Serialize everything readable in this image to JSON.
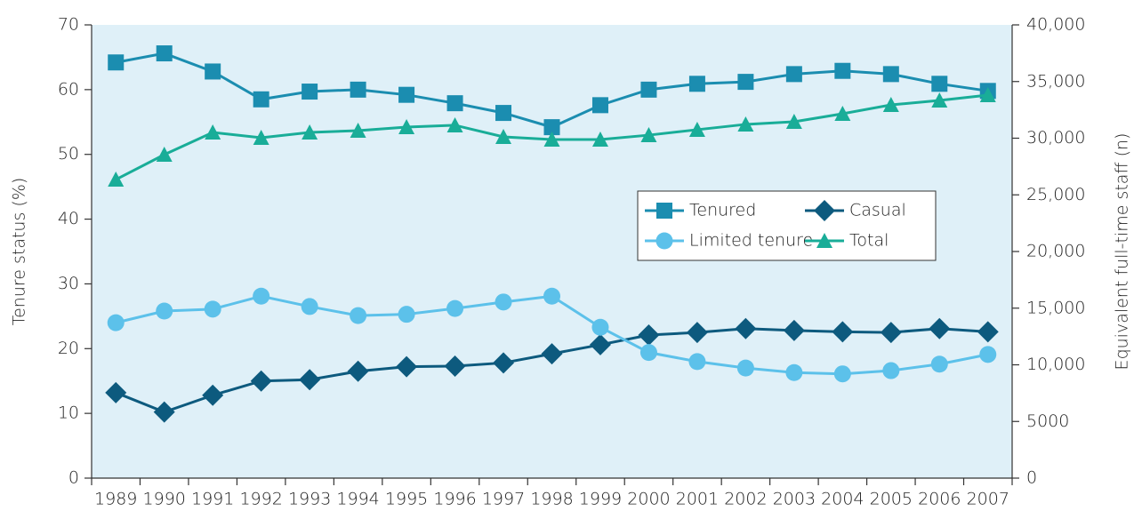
{
  "chart_data": {
    "type": "line",
    "categories": [
      "1989",
      "1990",
      "1991",
      "1992",
      "1993",
      "1994",
      "1995",
      "1996",
      "1997",
      "1998",
      "1999",
      "2000",
      "2001",
      "2002",
      "2003",
      "2004",
      "2005",
      "2006",
      "2007"
    ],
    "ylabel": "Tenure status (%)",
    "y2label": "Equivalent full-time staff (n)",
    "ylim": [
      0,
      70
    ],
    "yticks": [
      0,
      10,
      20,
      30,
      40,
      50,
      60,
      70
    ],
    "y2lim": [
      0,
      40000
    ],
    "y2ticks": [
      0,
      5000,
      {
        "value": 10000,
        "label": "10,000"
      },
      {
        "value": 15000,
        "label": "15,000"
      },
      {
        "value": 20000,
        "label": "20,000"
      },
      {
        "value": 25000,
        "label": "25,000"
      },
      {
        "value": 30000,
        "label": "30,000"
      },
      {
        "value": 35000,
        "label": "35,000"
      },
      {
        "value": 40000,
        "label": "40,000"
      }
    ],
    "legend": "center",
    "background": "#dff0f8",
    "series": [
      {
        "name": "Tenured",
        "color": "#1b8db0",
        "marker": "square",
        "values": [
          64.2,
          65.6,
          62.8,
          58.5,
          59.7,
          60.0,
          59.2,
          57.9,
          56.4,
          54.2,
          57.6,
          60.0,
          60.9,
          61.2,
          62.4,
          62.9,
          62.4,
          60.9,
          59.8
        ]
      },
      {
        "name": "Casual",
        "color": "#0d5a7e",
        "marker": "diamond",
        "values": [
          13.2,
          10.2,
          12.8,
          15.0,
          15.2,
          16.5,
          17.2,
          17.3,
          17.8,
          19.2,
          20.6,
          22.1,
          22.5,
          23.1,
          22.8,
          22.6,
          22.5,
          23.1,
          22.6
        ]
      },
      {
        "name": "Limited tenure",
        "color": "#5cc1ea",
        "marker": "circle",
        "values": [
          24.0,
          25.8,
          26.1,
          28.1,
          26.5,
          25.1,
          25.3,
          26.2,
          27.2,
          28.1,
          23.3,
          19.4,
          18.0,
          17.0,
          16.3,
          16.1,
          16.6,
          17.6,
          19.1
        ]
      },
      {
        "name": "Total",
        "color": "#19ad98",
        "marker": "triangle",
        "axis": "y2",
        "values": [
          26350,
          28550,
          30510,
          30040,
          30510,
          30670,
          30980,
          31140,
          30120,
          29880,
          29880,
          30270,
          30750,
          31220,
          31450,
          32160,
          32940,
          33330,
          33800
        ]
      }
    ]
  }
}
